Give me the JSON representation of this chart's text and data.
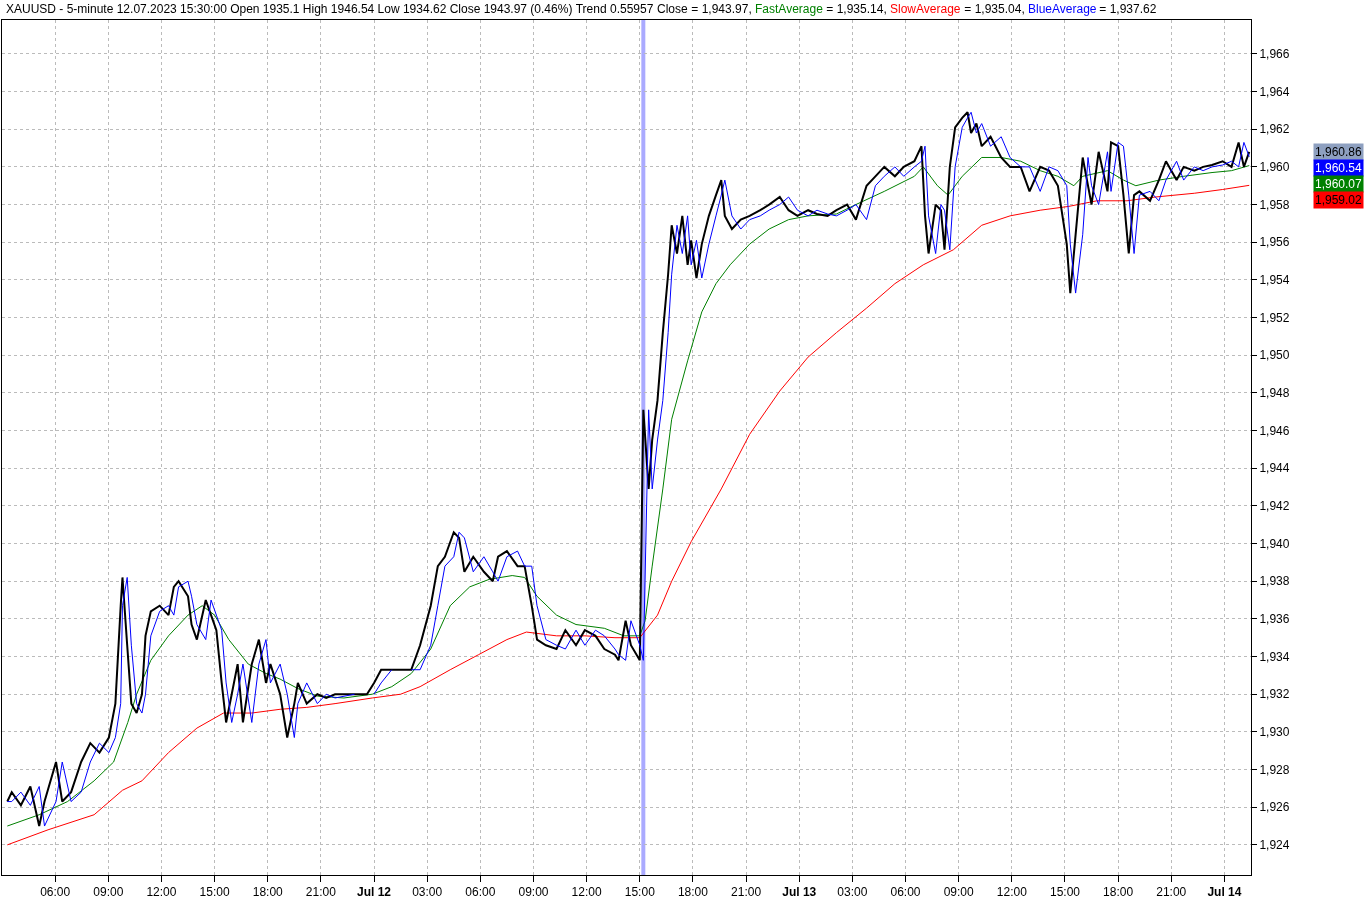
{
  "chart_data": {
    "type": "line",
    "title": "XAUUSD - 5-minute 12.07.2023 15:30:00 Open 1935.1 High 1946.54 Low 1934.62 Close 1943.97 (0.46%) Trend 0.55957",
    "x": [
      "2023-07-11T03:18",
      "2023-07-11T03:33",
      "2023-07-11T04:04",
      "2023-07-11T04:36",
      "2023-07-11T05:06",
      "2023-07-11T05:24",
      "2023-07-11T06:03",
      "2023-07-11T06:24",
      "2023-07-11T06:54",
      "2023-07-11T07:28",
      "2023-07-11T07:59",
      "2023-07-11T08:30",
      "2023-07-11T09:02",
      "2023-07-11T09:24",
      "2023-07-11T09:42",
      "2023-07-11T09:48",
      "2023-07-11T10:04",
      "2023-07-11T10:18",
      "2023-07-11T10:36",
      "2023-07-11T10:54",
      "2023-07-11T11:06",
      "2023-07-11T11:24",
      "2023-07-11T11:54",
      "2023-07-11T12:24",
      "2023-07-11T12:42",
      "2023-07-11T12:58",
      "2023-07-11T13:30",
      "2023-07-11T13:42",
      "2023-07-11T14:00",
      "2023-07-11T14:30",
      "2023-07-11T14:48",
      "2023-07-11T15:06",
      "2023-07-11T15:24",
      "2023-07-11T15:39",
      "2023-07-11T15:58",
      "2023-07-11T16:18",
      "2023-07-11T16:36",
      "2023-07-11T17:06",
      "2023-07-11T17:30",
      "2023-07-11T17:54",
      "2023-07-11T18:09",
      "2023-07-11T18:42",
      "2023-07-11T19:06",
      "2023-07-11T19:30",
      "2023-07-11T19:42",
      "2023-07-11T20:12",
      "2023-07-11T20:48",
      "2023-07-11T21:18",
      "2023-07-11T21:48",
      "2023-07-11T22:54",
      "2023-07-11T23:36",
      "2023-07-12T00:00",
      "2023-07-12T00:24",
      "2023-07-12T01:00",
      "2023-07-12T01:30",
      "2023-07-12T02:06",
      "2023-07-12T02:36",
      "2023-07-12T03:12",
      "2023-07-12T03:36",
      "2023-07-12T04:00",
      "2023-07-12T04:30",
      "2023-07-12T04:48",
      "2023-07-12T05:06",
      "2023-07-12T05:36",
      "2023-07-12T06:12",
      "2023-07-12T06:42",
      "2023-07-12T07:00",
      "2023-07-12T07:30",
      "2023-07-12T08:06",
      "2023-07-12T08:30",
      "2023-07-12T08:54",
      "2023-07-12T09:12",
      "2023-07-12T09:42",
      "2023-07-12T10:18",
      "2023-07-12T10:48",
      "2023-07-12T11:24",
      "2023-07-12T11:54",
      "2023-07-12T12:30",
      "2023-07-12T13:00",
      "2023-07-12T13:36",
      "2023-07-12T13:48",
      "2023-07-12T14:12",
      "2023-07-12T14:30",
      "2023-07-12T15:00",
      "2023-07-12T15:12",
      "2023-07-12T15:30",
      "2023-07-12T15:42",
      "2023-07-12T16:00",
      "2023-07-12T16:18",
      "2023-07-12T16:36",
      "2023-07-12T16:48",
      "2023-07-12T17:06",
      "2023-07-12T17:24",
      "2023-07-12T17:42",
      "2023-07-12T17:54",
      "2023-07-12T18:12",
      "2023-07-12T18:30",
      "2023-07-12T18:54",
      "2023-07-12T19:18",
      "2023-07-12T19:36",
      "2023-07-12T19:48",
      "2023-07-12T20:12",
      "2023-07-12T20:42",
      "2023-07-12T21:12",
      "2023-07-12T21:48",
      "2023-07-12T22:18",
      "2023-07-12T22:54",
      "2023-07-12T23:24",
      "2023-07-12T23:54",
      "2023-07-13T00:30",
      "2023-07-13T01:00",
      "2023-07-13T01:36",
      "2023-07-13T02:06",
      "2023-07-13T02:42",
      "2023-07-13T03:12",
      "2023-07-13T03:48",
      "2023-07-13T04:18",
      "2023-07-13T04:48",
      "2023-07-13T05:24",
      "2023-07-13T05:54",
      "2023-07-13T06:30",
      "2023-07-13T06:54",
      "2023-07-13T07:06",
      "2023-07-13T07:18",
      "2023-07-13T07:42",
      "2023-07-13T08:00",
      "2023-07-13T08:12",
      "2023-07-13T08:30",
      "2023-07-13T08:48",
      "2023-07-13T09:12",
      "2023-07-13T09:30",
      "2023-07-13T09:42",
      "2023-07-13T10:00",
      "2023-07-13T10:18",
      "2023-07-13T10:48",
      "2023-07-13T11:24",
      "2023-07-13T11:54",
      "2023-07-13T12:30",
      "2023-07-13T13:00",
      "2023-07-13T13:36",
      "2023-07-13T14:06",
      "2023-07-13T14:36",
      "2023-07-13T15:06",
      "2023-07-13T15:18",
      "2023-07-13T15:36",
      "2023-07-13T16:00",
      "2023-07-13T16:18",
      "2023-07-13T16:30",
      "2023-07-13T16:54",
      "2023-07-13T17:24",
      "2023-07-13T17:36",
      "2023-07-13T18:00",
      "2023-07-13T18:18",
      "2023-07-13T18:36",
      "2023-07-13T18:54",
      "2023-07-13T19:12",
      "2023-07-13T19:48",
      "2023-07-13T20:18",
      "2023-07-13T20:42",
      "2023-07-13T21:18",
      "2023-07-13T21:42",
      "2023-07-13T22:18",
      "2023-07-13T22:48",
      "2023-07-13T23:18",
      "2023-07-13T23:54",
      "2023-07-14T00:24",
      "2023-07-14T00:48",
      "2023-07-14T01:06",
      "2023-07-14T01:24"
    ],
    "series": [
      {
        "name": "Close",
        "color": "#000000",
        "values": [
          1926.3,
          1926.8,
          1926.1,
          1927.1,
          1925.0,
          1926.3,
          1928.4,
          1926.3,
          1926.8,
          1928.4,
          1929.4,
          1928.9,
          1929.7,
          1931.5,
          1936.7,
          1938.2,
          1934.6,
          1931.5,
          1931.0,
          1932.0,
          1935.1,
          1936.4,
          1936.7,
          1936.2,
          1937.7,
          1938.0,
          1937.2,
          1935.7,
          1934.9,
          1937.0,
          1936.2,
          1935.4,
          1932.6,
          1930.5,
          1932.0,
          1933.6,
          1930.5,
          1933.6,
          1934.9,
          1932.6,
          1933.6,
          1932.0,
          1929.7,
          1931.5,
          1932.6,
          1931.5,
          1932.0,
          1931.8,
          1932.0,
          1932.0,
          1932.0,
          1932.6,
          1933.3,
          1933.3,
          1933.3,
          1933.3,
          1934.6,
          1936.7,
          1938.8,
          1939.3,
          1940.6,
          1940.3,
          1938.5,
          1939.3,
          1938.5,
          1938.0,
          1939.3,
          1939.6,
          1938.8,
          1938.8,
          1936.7,
          1934.9,
          1934.6,
          1934.4,
          1935.4,
          1934.6,
          1935.4,
          1935.1,
          1934.4,
          1934.1,
          1933.8,
          1935.9,
          1934.6,
          1933.8,
          1947.1,
          1942.9,
          1945.5,
          1947.6,
          1951.2,
          1954.3,
          1956.9,
          1955.4,
          1957.4,
          1954.8,
          1956.1,
          1954.1,
          1955.9,
          1957.4,
          1958.5,
          1959.3,
          1957.4,
          1956.7,
          1957.2,
          1957.4,
          1957.7,
          1958.0,
          1958.4,
          1957.7,
          1957.4,
          1957.7,
          1957.5,
          1957.4,
          1957.7,
          1958.0,
          1957.2,
          1959.0,
          1959.5,
          1960.0,
          1959.5,
          1960.0,
          1960.3,
          1961.1,
          1957.4,
          1955.4,
          1958.0,
          1957.7,
          1955.6,
          1960.0,
          1962.1,
          1962.6,
          1962.9,
          1961.8,
          1962.3,
          1961.1,
          1961.6,
          1960.5,
          1960.0,
          1960.0,
          1958.7,
          1960.0,
          1959.8,
          1959.0,
          1955.9,
          1953.3,
          1956.4,
          1960.5,
          1959.0,
          1958.0,
          1960.8,
          1958.7,
          1961.3,
          1961.1,
          1958.5,
          1955.4,
          1958.5,
          1958.7,
          1958.2,
          1959.3,
          1960.3,
          1959.3,
          1960.0,
          1959.8,
          1960.0,
          1960.1,
          1960.3,
          1960.0,
          1961.3,
          1960.0,
          1960.8
        ]
      },
      {
        "name": "FastAverage",
        "color": "#008000",
        "x": [
          "2023-07-11T03:18",
          "2023-07-11T05:06",
          "2023-07-11T06:42",
          "2023-07-11T08:12",
          "2023-07-11T09:18",
          "2023-07-11T10:06",
          "2023-07-11T10:36",
          "2023-07-11T11:24",
          "2023-07-11T12:24",
          "2023-07-11T13:30",
          "2023-07-11T14:18",
          "2023-07-11T15:00",
          "2023-07-11T15:48",
          "2023-07-11T16:54",
          "2023-07-11T17:54",
          "2023-07-11T18:42",
          "2023-07-11T19:42",
          "2023-07-11T20:48",
          "2023-07-11T22:18",
          "2023-07-11T23:54",
          "2023-07-12T01:00",
          "2023-07-12T02:06",
          "2023-07-12T03:12",
          "2023-07-12T04:18",
          "2023-07-12T05:24",
          "2023-07-12T06:30",
          "2023-07-12T07:48",
          "2023-07-12T08:30",
          "2023-07-12T09:12",
          "2023-07-12T10:18",
          "2023-07-12T11:24",
          "2023-07-12T13:00",
          "2023-07-12T14:06",
          "2023-07-12T15:00",
          "2023-07-12T15:18",
          "2023-07-12T15:42",
          "2023-07-12T16:18",
          "2023-07-12T16:48",
          "2023-07-12T17:42",
          "2023-07-12T18:30",
          "2023-07-12T19:18",
          "2023-07-12T20:06",
          "2023-07-12T21:12",
          "2023-07-12T22:18",
          "2023-07-12T23:24",
          "2023-07-13T00:30",
          "2023-07-13T02:06",
          "2023-07-13T03:12",
          "2023-07-13T04:48",
          "2023-07-13T06:30",
          "2023-07-13T07:00",
          "2023-07-13T07:48",
          "2023-07-13T08:24",
          "2023-07-13T09:12",
          "2023-07-13T10:18",
          "2023-07-13T11:24",
          "2023-07-13T12:30",
          "2023-07-13T13:36",
          "2023-07-13T14:36",
          "2023-07-13T15:30",
          "2023-07-13T16:00",
          "2023-07-13T17:24",
          "2023-07-13T18:18",
          "2023-07-13T19:00",
          "2023-07-13T20:18",
          "2023-07-13T21:42",
          "2023-07-13T23:18",
          "2023-07-14T00:24",
          "2023-07-14T01:24"
        ],
        "values": [
          1925.0,
          1925.6,
          1926.3,
          1927.4,
          1928.4,
          1930.5,
          1932.0,
          1933.8,
          1935.1,
          1936.2,
          1936.7,
          1936.2,
          1934.9,
          1933.6,
          1933.1,
          1932.8,
          1932.3,
          1931.9,
          1931.8,
          1932.0,
          1932.4,
          1933.1,
          1934.4,
          1936.7,
          1937.7,
          1938.1,
          1938.3,
          1938.2,
          1937.2,
          1936.2,
          1935.7,
          1935.5,
          1935.1,
          1935.1,
          1935.9,
          1938.8,
          1942.9,
          1946.6,
          1949.7,
          1952.3,
          1953.8,
          1954.8,
          1955.9,
          1956.7,
          1957.2,
          1957.4,
          1957.5,
          1958.0,
          1958.7,
          1959.5,
          1960.0,
          1959.0,
          1958.5,
          1959.5,
          1960.5,
          1960.5,
          1960.3,
          1959.8,
          1959.5,
          1959.0,
          1959.5,
          1959.8,
          1959.3,
          1959.0,
          1959.3,
          1959.5,
          1959.7,
          1959.8,
          1960.07
        ]
      },
      {
        "name": "SlowAverage",
        "color": "#ff0000",
        "x": [
          "2023-07-11T03:18",
          "2023-07-11T05:36",
          "2023-07-11T08:12",
          "2023-07-11T09:48",
          "2023-07-11T10:54",
          "2023-07-11T12:24",
          "2023-07-11T14:00",
          "2023-07-11T15:30",
          "2023-07-11T17:06",
          "2023-07-11T18:42",
          "2023-07-11T20:12",
          "2023-07-11T21:48",
          "2023-07-11T23:54",
          "2023-07-12T01:30",
          "2023-07-12T02:36",
          "2023-07-12T04:18",
          "2023-07-12T05:54",
          "2023-07-12T07:30",
          "2023-07-12T08:36",
          "2023-07-12T10:18",
          "2023-07-12T11:54",
          "2023-07-12T13:36",
          "2023-07-12T15:00",
          "2023-07-12T16:00",
          "2023-07-12T16:48",
          "2023-07-12T17:54",
          "2023-07-12T19:36",
          "2023-07-12T21:12",
          "2023-07-12T22:54",
          "2023-07-13T00:30",
          "2023-07-13T02:06",
          "2023-07-13T03:48",
          "2023-07-13T05:24",
          "2023-07-13T07:00",
          "2023-07-13T08:42",
          "2023-07-13T10:18",
          "2023-07-13T11:54",
          "2023-07-13T13:36",
          "2023-07-13T15:12",
          "2023-07-13T16:48",
          "2023-07-13T18:30",
          "2023-07-13T20:06",
          "2023-07-13T22:18",
          "2023-07-13T23:54",
          "2023-07-14T01:24"
        ],
        "values": [
          1924.0,
          1924.8,
          1925.6,
          1926.9,
          1927.4,
          1928.9,
          1930.2,
          1931.0,
          1931.0,
          1931.2,
          1931.3,
          1931.5,
          1931.8,
          1932.0,
          1932.4,
          1933.3,
          1934.1,
          1934.9,
          1935.3,
          1935.1,
          1935.1,
          1935.0,
          1935.0,
          1936.2,
          1938.0,
          1940.1,
          1942.9,
          1945.8,
          1948.1,
          1949.9,
          1951.2,
          1952.5,
          1953.8,
          1954.8,
          1955.6,
          1956.9,
          1957.4,
          1957.7,
          1957.9,
          1958.2,
          1958.2,
          1958.4,
          1958.6,
          1958.8,
          1959.02
        ]
      },
      {
        "name": "BlueAverage",
        "color": "#0000ff",
        "values": [
          1926.3,
          1926.3,
          1926.8,
          1926.1,
          1927.1,
          1925.0,
          1926.3,
          1928.4,
          1926.3,
          1926.8,
          1928.4,
          1929.4,
          1928.9,
          1929.7,
          1931.5,
          1936.7,
          1938.2,
          1934.6,
          1931.5,
          1931.0,
          1932.0,
          1935.1,
          1936.4,
          1936.7,
          1936.2,
          1937.7,
          1938.0,
          1937.2,
          1935.7,
          1934.9,
          1937.0,
          1936.2,
          1935.4,
          1932.6,
          1930.5,
          1932.0,
          1933.6,
          1930.5,
          1933.6,
          1934.9,
          1932.6,
          1933.6,
          1932.0,
          1929.7,
          1931.5,
          1932.6,
          1931.5,
          1932.0,
          1931.8,
          1932.0,
          null,
          1932.0,
          1932.6,
          1933.3,
          null,
          1933.3,
          1933.3,
          1934.6,
          1936.7,
          1938.8,
          1939.3,
          1940.6,
          1940.3,
          1938.5,
          1939.3,
          1938.5,
          1938.0,
          1939.3,
          1939.6,
          1938.8,
          1938.8,
          1936.7,
          1934.9,
          1934.6,
          1934.4,
          1935.4,
          1934.6,
          1935.4,
          1935.1,
          1934.4,
          1934.1,
          1933.8,
          1935.9,
          1934.6,
          1933.8,
          1947.1,
          1942.9,
          1945.5,
          1947.6,
          1951.2,
          1954.3,
          1956.9,
          1955.4,
          1957.4,
          1954.8,
          1956.1,
          1954.1,
          1955.9,
          1957.4,
          1958.5,
          1959.3,
          1957.4,
          1956.7,
          1957.2,
          1957.4,
          1957.7,
          1958.0,
          1958.4,
          1957.7,
          1957.4,
          1957.7,
          1957.5,
          1957.4,
          1957.7,
          1958.0,
          1957.2,
          1959.0,
          1959.5,
          1960.0,
          1959.5,
          1960.0,
          1960.3,
          1961.1,
          1957.4,
          1955.4,
          1958.0,
          1957.7,
          1955.6,
          1960.0,
          1962.1,
          1962.6,
          1962.9,
          1961.8,
          1962.3,
          1961.1,
          1961.6,
          1960.5,
          1960.0,
          1960.0,
          1958.7,
          1960.0,
          1959.8,
          1959.0,
          1955.9,
          1953.3,
          1956.4,
          1960.5,
          1959.0,
          1958.0,
          1960.8,
          1958.7,
          1961.3,
          1961.1,
          1958.5,
          1955.4,
          1958.5,
          1958.7,
          1958.2,
          1959.3,
          1960.3,
          1959.3,
          1960.0,
          1959.8,
          1960.0,
          1960.1,
          1960.3,
          1960.0,
          1961.3,
          1960.54
        ]
      }
    ],
    "xlim": [
      "2023-07-11T03:00",
      "2023-07-14T01:30"
    ],
    "xticks": [
      {
        "value": "2023-07-11T06:00",
        "label": "06:00"
      },
      {
        "value": "2023-07-11T09:00",
        "label": "09:00"
      },
      {
        "value": "2023-07-11T12:00",
        "label": "12:00"
      },
      {
        "value": "2023-07-11T15:00",
        "label": "15:00"
      },
      {
        "value": "2023-07-11T18:00",
        "label": "18:00"
      },
      {
        "value": "2023-07-11T21:00",
        "label": "21:00"
      },
      {
        "value": "2023-07-12T00:00",
        "label": "Jul 12"
      },
      {
        "value": "2023-07-12T03:00",
        "label": "03:00"
      },
      {
        "value": "2023-07-12T06:00",
        "label": "06:00"
      },
      {
        "value": "2023-07-12T09:00",
        "label": "09:00"
      },
      {
        "value": "2023-07-12T12:00",
        "label": "12:00"
      },
      {
        "value": "2023-07-12T15:00",
        "label": "15:00"
      },
      {
        "value": "2023-07-12T18:00",
        "label": "18:00"
      },
      {
        "value": "2023-07-12T21:00",
        "label": "21:00"
      },
      {
        "value": "2023-07-13T00:00",
        "label": "Jul 13"
      },
      {
        "value": "2023-07-13T03:00",
        "label": "03:00"
      },
      {
        "value": "2023-07-13T06:00",
        "label": "06:00"
      },
      {
        "value": "2023-07-13T09:00",
        "label": "09:00"
      },
      {
        "value": "2023-07-13T12:00",
        "label": "12:00"
      },
      {
        "value": "2023-07-13T15:00",
        "label": "15:00"
      },
      {
        "value": "2023-07-13T18:00",
        "label": "18:00"
      },
      {
        "value": "2023-07-13T21:00",
        "label": "21:00"
      },
      {
        "value": "2023-07-14T00:00",
        "label": "Jul 14"
      }
    ],
    "ylim": [
      1922.4,
      1967.8
    ],
    "yticks": [
      {
        "value": 1924,
        "label": "1,924"
      },
      {
        "value": 1926,
        "label": "1,926"
      },
      {
        "value": 1928,
        "label": "1,928"
      },
      {
        "value": 1930,
        "label": "1,930"
      },
      {
        "value": 1932,
        "label": "1,932"
      },
      {
        "value": 1934,
        "label": "1,934"
      },
      {
        "value": 1936,
        "label": "1,936"
      },
      {
        "value": 1938,
        "label": "1,938"
      },
      {
        "value": 1940,
        "label": "1,940"
      },
      {
        "value": 1942,
        "label": "1,942"
      },
      {
        "value": 1944,
        "label": "1,944"
      },
      {
        "value": 1946,
        "label": "1,946"
      },
      {
        "value": 1948,
        "label": "1,948"
      },
      {
        "value": 1950,
        "label": "1,950"
      },
      {
        "value": 1952,
        "label": "1,952"
      },
      {
        "value": 1954,
        "label": "1,954"
      },
      {
        "value": 1956,
        "label": "1,956"
      },
      {
        "value": 1958,
        "label": "1,958"
      },
      {
        "value": 1960,
        "label": "1,960"
      },
      {
        "value": 1962,
        "label": "1,962"
      },
      {
        "value": 1964,
        "label": "1,964"
      },
      {
        "value": 1966,
        "label": "1,966"
      }
    ],
    "ref_lines": [
      {
        "axis": "x",
        "value": "2023-07-12T15:12",
        "color": "#aaaaff"
      }
    ],
    "annotations": [
      "1,960.86",
      "1,960.54",
      "1,960.07",
      "1,959.02",
      "= 1,943.97,",
      "= 1,935.14,",
      "= 1,935.04,",
      "= 1,937.62"
    ],
    "grid": true,
    "legend": false,
    "marker": "none",
    "line_style": "solid"
  }
}
